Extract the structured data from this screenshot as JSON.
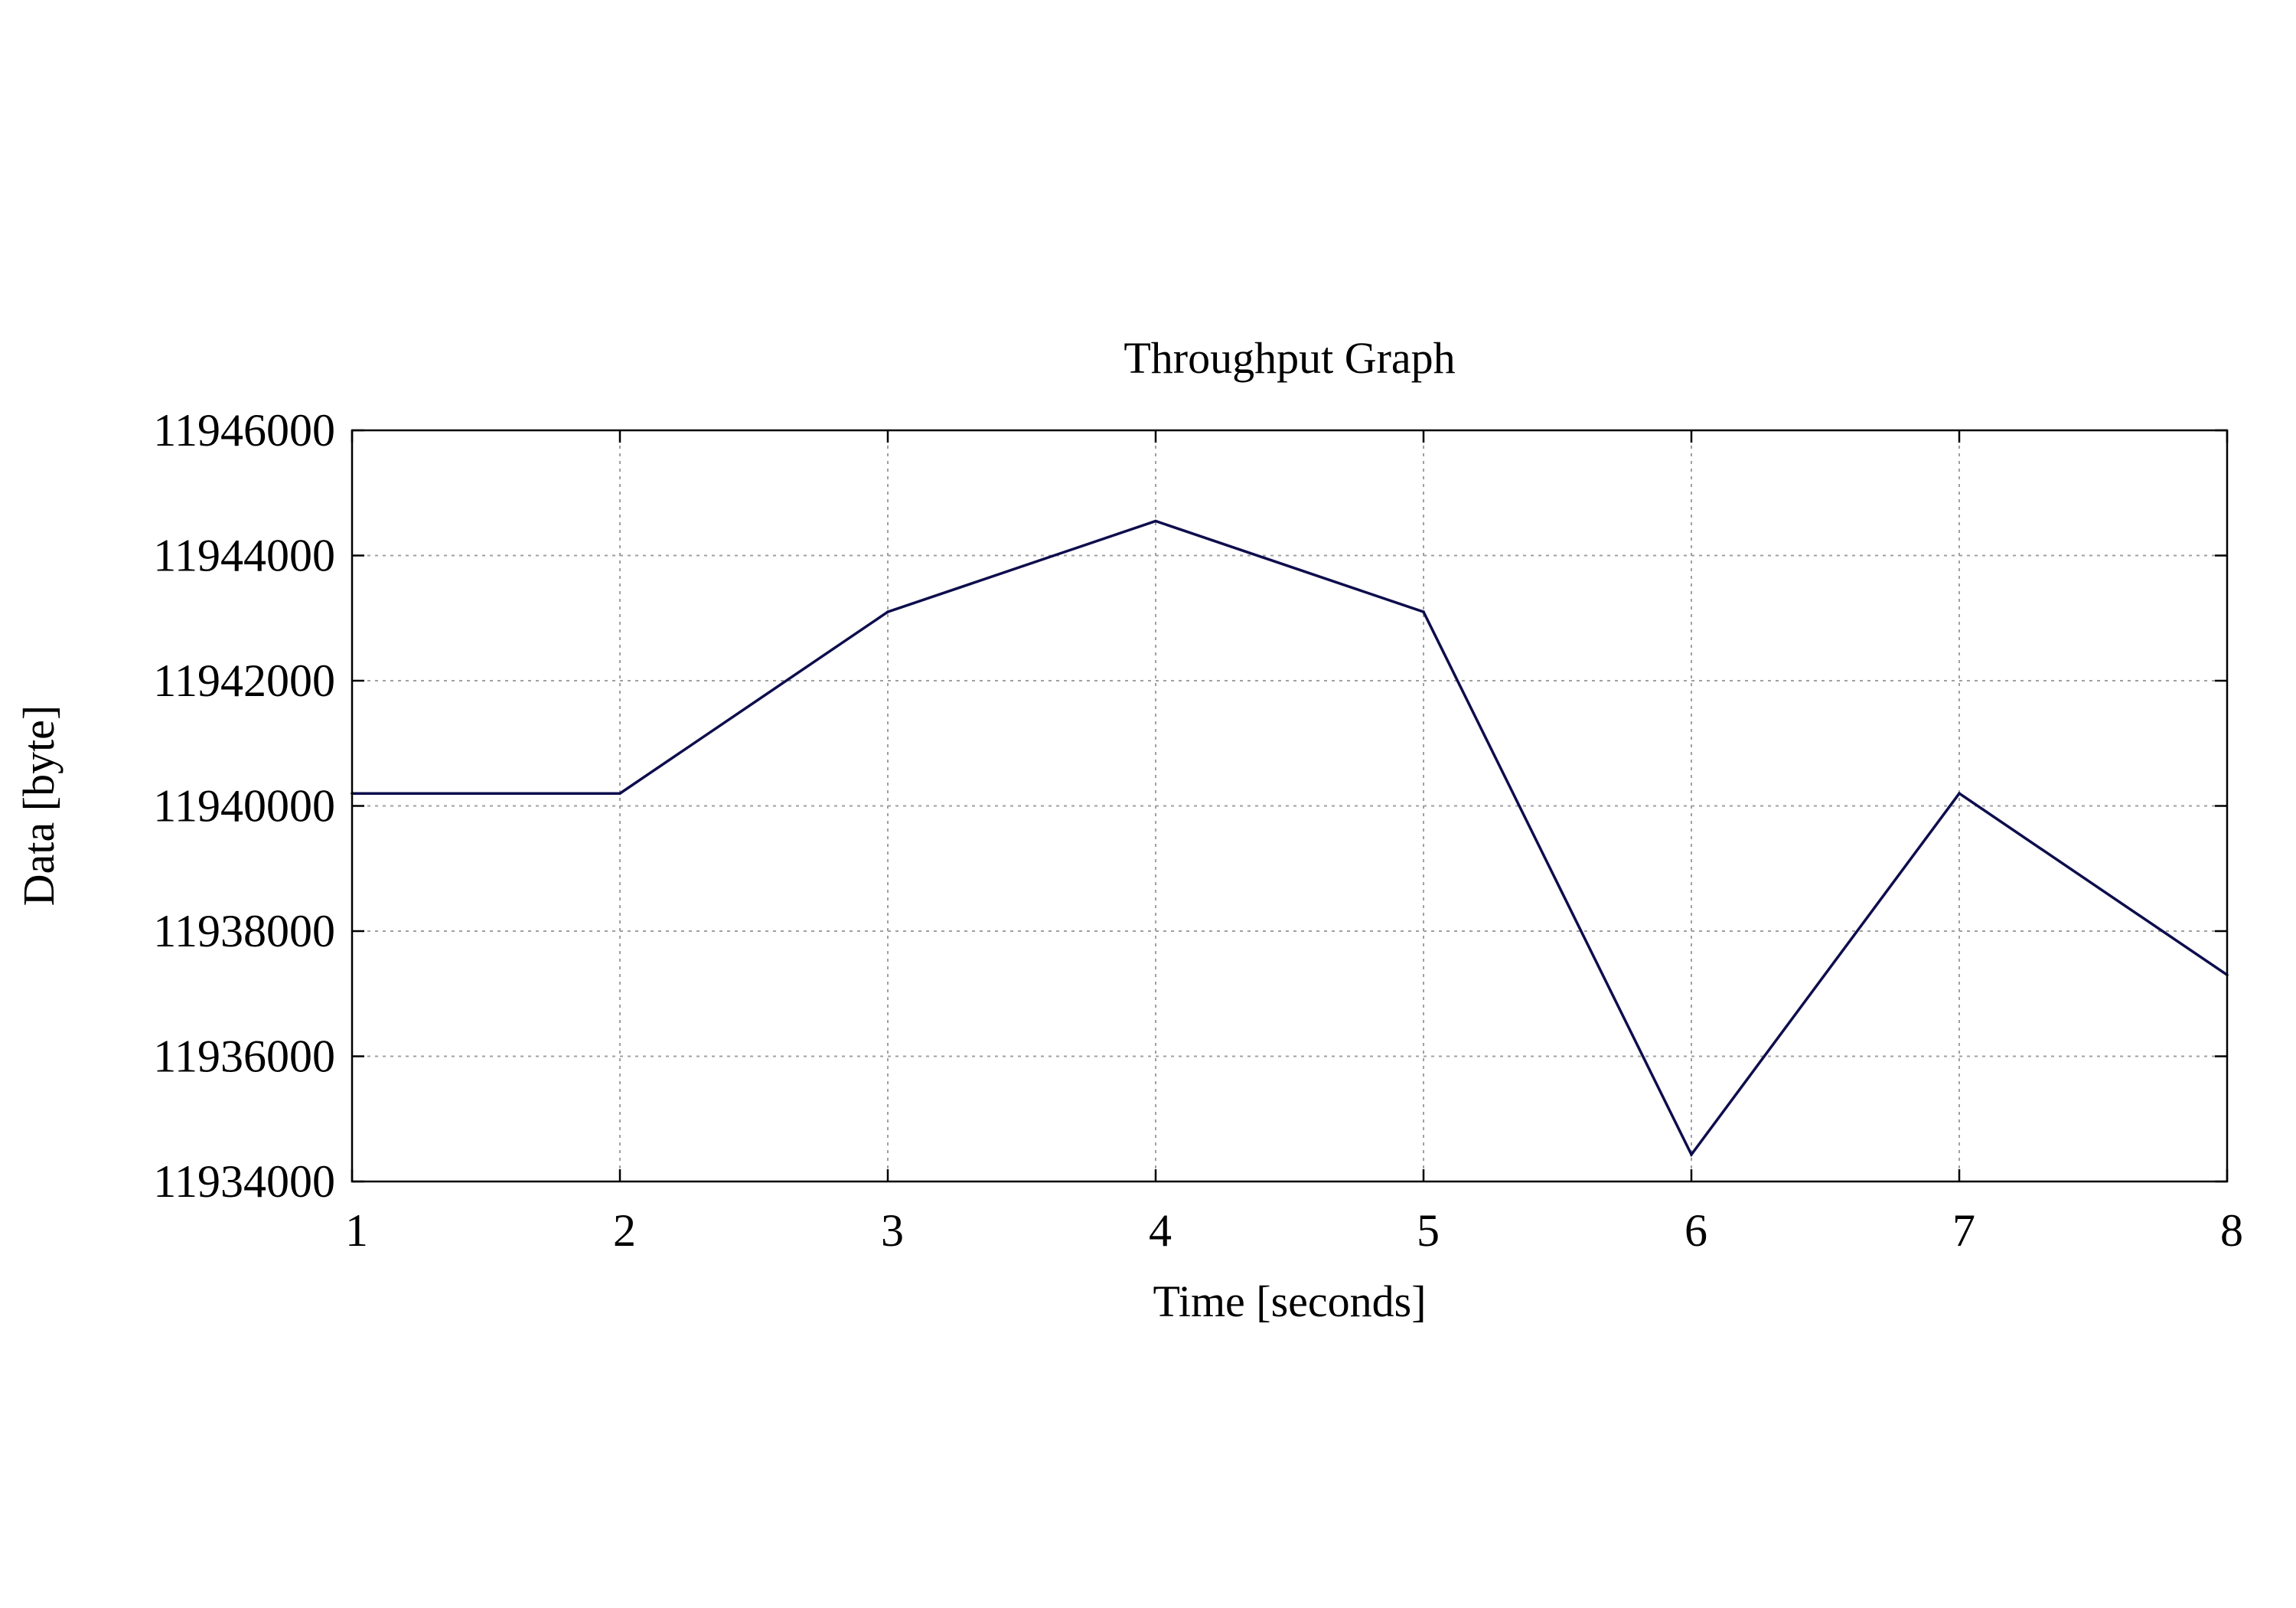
{
  "chart_data": {
    "type": "line",
    "title": "Throughput Graph",
    "xlabel": "Time [seconds]",
    "ylabel": "Data [byte]",
    "xlim": [
      1,
      8
    ],
    "ylim": [
      11934000,
      11946000
    ],
    "x_ticks": [
      1,
      2,
      3,
      4,
      5,
      6,
      7,
      8
    ],
    "y_ticks": [
      11934000,
      11936000,
      11938000,
      11940000,
      11942000,
      11944000,
      11946000
    ],
    "grid": true,
    "legend": "none",
    "series": [
      {
        "color": "#0d0d4d",
        "x": [
          1,
          2,
          3,
          4,
          5,
          6,
          7,
          8
        ],
        "y": [
          11940200,
          11940200,
          11943100,
          11944550,
          11943100,
          11934430,
          11940200,
          11937300
        ]
      }
    ]
  }
}
